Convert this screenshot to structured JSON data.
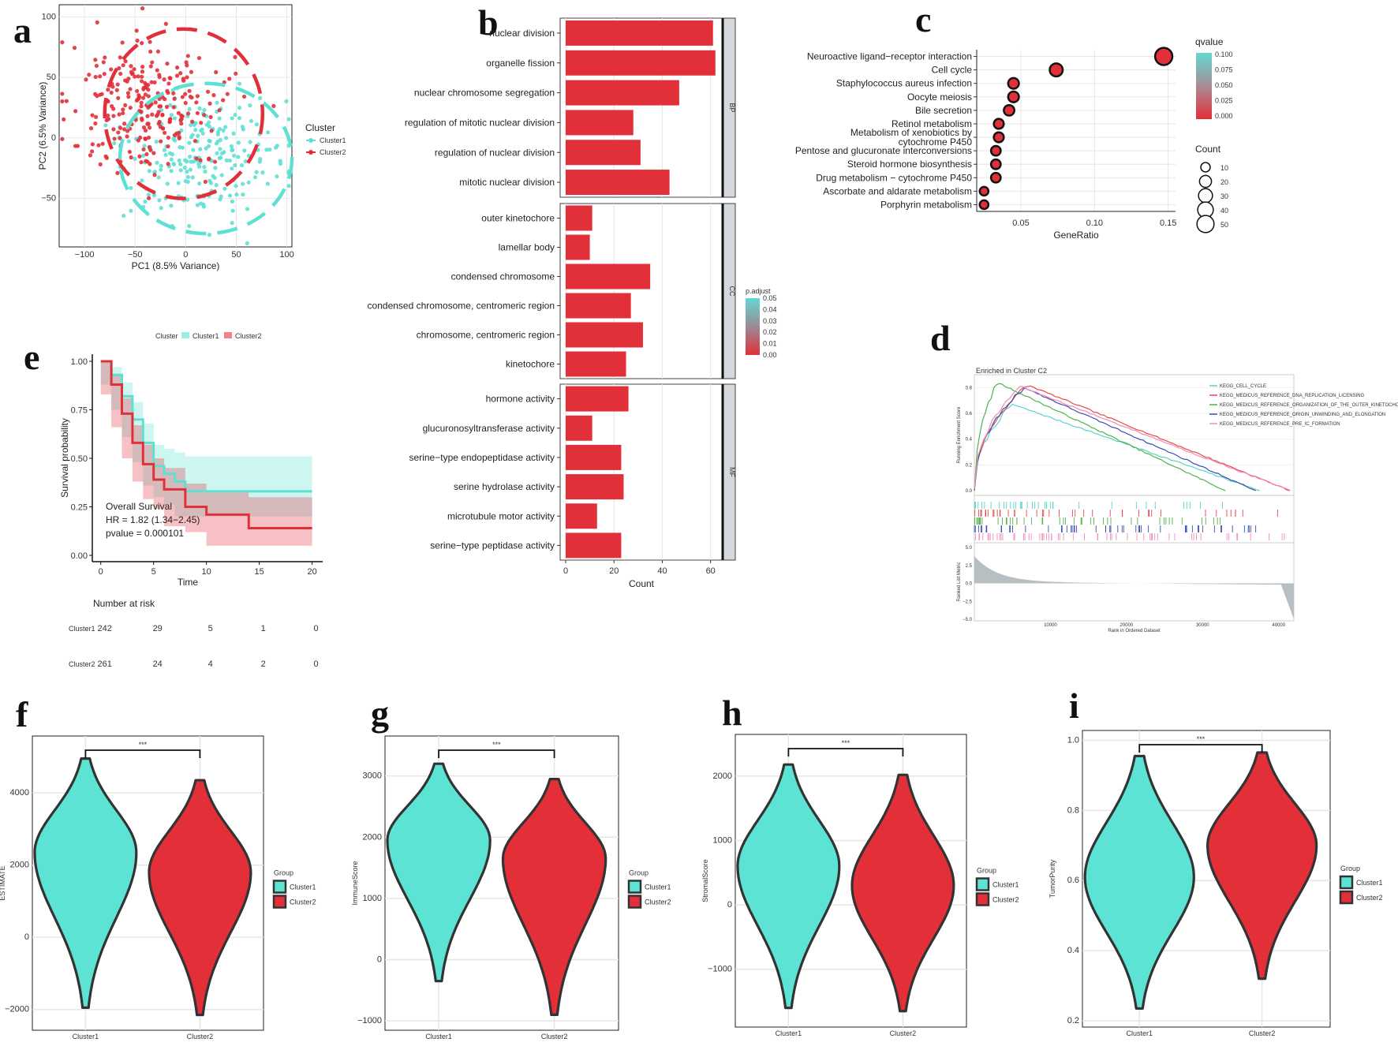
{
  "panels": {
    "a": "a",
    "b": "b",
    "c": "c",
    "d": "d",
    "e": "e",
    "f": "f",
    "g": "g",
    "h": "h",
    "i": "i"
  },
  "colors": {
    "cluster1": "#5ee0d2",
    "cluster2": "#e2303a",
    "grid": "#e6e6e6",
    "strip": "#d5d8dc",
    "violin_c1": "#5de3d3",
    "violin_c2": "#e32f37",
    "outline": "#333333"
  },
  "chart_data": [
    {
      "id": "a",
      "type": "scatter",
      "xlabel": "PC1 (8.5% Variance)",
      "ylabel": "PC2 (6.5% Variance)",
      "xlim": [
        -125,
        105
      ],
      "ylim": [
        -90,
        110
      ],
      "xticks": [
        -100,
        -50,
        0,
        50,
        100
      ],
      "yticks": [
        -50,
        0,
        50,
        100
      ],
      "xtick_labels": [
        "−100",
        "−50",
        "0",
        "50",
        "100"
      ],
      "ytick_labels": [
        "−50",
        "0",
        "50",
        "100"
      ],
      "legend": {
        "title": "Cluster",
        "entries": [
          "Cluster1",
          "Cluster2"
        ],
        "placement": "right"
      },
      "ellipses": [
        {
          "series": "Cluster2",
          "center": [
            -2,
            20
          ],
          "rx": 78,
          "ry": 70
        },
        {
          "series": "Cluster1",
          "center": [
            20,
            -17
          ],
          "rx": 85,
          "ry": 62
        }
      ],
      "series": [
        {
          "name": "Cluster1",
          "n_points": 242,
          "center": [
            15,
            -15
          ],
          "spread": [
            40,
            28
          ]
        },
        {
          "name": "Cluster2",
          "n_points": 261,
          "center": [
            -35,
            25
          ],
          "spread": [
            40,
            30
          ]
        }
      ]
    },
    {
      "id": "b",
      "type": "bar",
      "orientation": "horizontal",
      "xlabel": "Count",
      "xlim": [
        0,
        65
      ],
      "xticks": [
        0,
        20,
        40,
        60
      ],
      "facets": [
        {
          "strip": "BP",
          "categories": [
            "nuclear division",
            "organelle fission",
            "nuclear chromosome segregation",
            "regulation of mitotic nuclear division",
            "regulation of nuclear division",
            "mitotic nuclear division"
          ],
          "values": [
            61,
            62,
            47,
            28,
            31,
            43
          ]
        },
        {
          "strip": "CC",
          "categories": [
            "outer kinetochore",
            "lamellar body",
            "condensed chromosome",
            "condensed chromosome, centromeric region",
            "chromosome, centromeric region",
            "kinetochore"
          ],
          "values": [
            11,
            10,
            35,
            27,
            32,
            25
          ]
        },
        {
          "strip": "MF",
          "categories": [
            "hormone activity",
            "glucuronosyltransferase activity",
            "serine−type endopeptidase activity",
            "serine hydrolase activity",
            "microtubule motor activity",
            "serine−type peptidase activity"
          ],
          "values": [
            26,
            11,
            23,
            24,
            13,
            23
          ]
        }
      ],
      "colorbar": {
        "title": "p.adjust",
        "ticks": [
          "0.05",
          "0.04",
          "0.03",
          "0.02",
          "0.01",
          "0.00"
        ]
      }
    },
    {
      "id": "c",
      "type": "scatter",
      "subtype": "dot",
      "xlabel": "GeneRatio",
      "xlim": [
        0.02,
        0.155
      ],
      "xticks": [
        0.05,
        0.1,
        0.15
      ],
      "xtick_labels": [
        "0.05",
        "0.10",
        "0.15"
      ],
      "categories": [
        "Neuroactive ligand−receptor interaction",
        "Cell cycle",
        "Staphylococcus aureus infection",
        "Oocyte meiosis",
        "Bile secretion",
        "Retinol metabolism",
        "Metabolism of xenobiotics by|cytochrome P450",
        "Pentose and glucuronate interconversions",
        "Steroid hormone biosynthesis",
        "Drug metabolism − cytochrome P450",
        "Ascorbate and aldarate metabolism",
        "Porphyrin metabolism"
      ],
      "x": [
        0.147,
        0.074,
        0.045,
        0.045,
        0.042,
        0.035,
        0.035,
        0.033,
        0.033,
        0.033,
        0.025,
        0.025
      ],
      "count": [
        51,
        25,
        15,
        15,
        14,
        12,
        12,
        11,
        11,
        11,
        8,
        8
      ],
      "colorbar": {
        "title": "qvalue",
        "ticks": [
          "0.100",
          "0.075",
          "0.050",
          "0.025",
          "0.000"
        ]
      },
      "size_legend": {
        "title": "Count",
        "entries": [
          "10",
          "20",
          "30",
          "40",
          "50"
        ]
      }
    },
    {
      "id": "d",
      "type": "line",
      "subtype": "gsea",
      "title": "Enriched in Cluster C2",
      "ylabel_top": "Running Enrichment Score",
      "ylabel_bottom": "Ranked List Metric",
      "xlabel": "Rank in Ordered Dataset",
      "xlim": [
        0,
        42000
      ],
      "xticks": [
        10000,
        20000,
        30000,
        40000
      ],
      "xtick_labels": [
        "10000",
        "20000",
        "30000",
        "40000"
      ],
      "yticks_top": [
        0.0,
        0.2,
        0.4,
        0.6,
        0.8
      ],
      "yticks_bottom": [
        "5.0",
        "2.5",
        "0.0",
        "−2.5",
        "−5.0"
      ],
      "series": [
        {
          "name": "KEGG_CELL_CYCLE",
          "color": "#5ad3c8",
          "peak_rank": 5000,
          "peak": 0.67,
          "end_rank": 37500
        },
        {
          "name": "KEGG_MEDICUS_REFERENCE_DNA_REPLICATION_LICENSING",
          "color": "#e8484c",
          "peak_rank": 7000,
          "peak": 0.82,
          "end_rank": 41500
        },
        {
          "name": "KEGG_MEDICUS_REFERENCE_ORGANIZATION_OF_THE_OUTER_KINETOCHO",
          "color": "#4db34a",
          "peak_rank": 3000,
          "peak": 0.84,
          "end_rank": 33000
        },
        {
          "name": "KEGG_MEDICUS_REFERENCE_ORIGIN_UNWINDING_AND_ELONGATION",
          "color": "#3a4fb5",
          "peak_rank": 6500,
          "peak": 0.8,
          "end_rank": 37000
        },
        {
          "name": "KEGG_MEDICUS_REFERENCE_PRE_IC_FORMATION",
          "color": "#f28cb8",
          "peak_rank": 6000,
          "peak": 0.81,
          "end_rank": 41500
        }
      ]
    },
    {
      "id": "e",
      "type": "line",
      "subtype": "kaplan-meier",
      "xlabel": "Time",
      "ylabel": "Survival probability",
      "xlim": [
        0,
        20
      ],
      "ylim": [
        0,
        1
      ],
      "xticks": [
        0,
        5,
        10,
        15,
        20
      ],
      "yticks": [
        "0.00",
        "0.25",
        "0.50",
        "0.75",
        "1.00"
      ],
      "legend": {
        "title": "Cluster",
        "entries": [
          "Cluster1",
          "Cluster2"
        ],
        "placement": "top"
      },
      "annotation": [
        "Overall Survival",
        "HR = 1.82 (1.34−2.45)",
        "pvalue = 0.000101"
      ],
      "series": [
        {
          "name": "Cluster1",
          "t": [
            0,
            1,
            2,
            3,
            4,
            5,
            6,
            7,
            8,
            10,
            20
          ],
          "s": [
            1.0,
            0.93,
            0.82,
            0.7,
            0.58,
            0.46,
            0.42,
            0.38,
            0.33,
            0.33,
            0.33
          ],
          "upper": [
            1.0,
            0.97,
            0.89,
            0.79,
            0.68,
            0.57,
            0.55,
            0.53,
            0.51,
            0.51,
            0.51
          ],
          "lower": [
            1.0,
            0.88,
            0.75,
            0.61,
            0.48,
            0.36,
            0.3,
            0.26,
            0.2,
            0.2,
            0.2
          ]
        },
        {
          "name": "Cluster2",
          "t": [
            0,
            1,
            2,
            3,
            4,
            5,
            6,
            8,
            10,
            14,
            20
          ],
          "s": [
            1.0,
            0.88,
            0.73,
            0.58,
            0.47,
            0.39,
            0.34,
            0.25,
            0.21,
            0.14,
            0.14
          ],
          "upper": [
            1.0,
            0.93,
            0.81,
            0.67,
            0.57,
            0.5,
            0.45,
            0.37,
            0.33,
            0.3,
            0.3
          ],
          "lower": [
            1.0,
            0.83,
            0.66,
            0.5,
            0.38,
            0.29,
            0.24,
            0.15,
            0.12,
            0.05,
            0.05
          ]
        }
      ],
      "risk_table": {
        "title": "Number at risk",
        "rows": [
          {
            "name": "Cluster1",
            "values": [
              "242",
              "29",
              "5",
              "1",
              "0"
            ]
          },
          {
            "name": "Cluster2",
            "values": [
              "261",
              "24",
              "4",
              "2",
              "0"
            ]
          }
        ]
      }
    },
    {
      "id": "f",
      "type": "violin",
      "ylabel": "ESTIMATE",
      "categories": [
        "Cluster1",
        "Cluster2"
      ],
      "ylim": [
        -2400,
        5400
      ],
      "yticks": [
        -2000,
        0,
        2000,
        4000
      ],
      "ytick_labels": [
        "−2000",
        "0",
        "2000",
        "4000"
      ],
      "ranges": [
        [
          -1950,
          4950
        ],
        [
          -2150,
          4350
        ]
      ],
      "modes": [
        2350,
        1800
      ],
      "significance": "***",
      "legend": {
        "title": "Group",
        "entries": [
          "Cluster1",
          "Cluster2"
        ]
      }
    },
    {
      "id": "g",
      "type": "violin",
      "ylabel": "ImmuneScore",
      "categories": [
        "Cluster1",
        "Cluster2"
      ],
      "ylim": [
        -1050,
        3550
      ],
      "yticks": [
        -1000,
        0,
        1000,
        2000,
        3000
      ],
      "ytick_labels": [
        "−1000",
        "0",
        "1000",
        "2000",
        "3000"
      ],
      "ranges": [
        [
          -350,
          3200
        ],
        [
          -900,
          2950
        ]
      ],
      "modes": [
        1950,
        1650
      ],
      "significance": "***",
      "legend": {
        "title": "Group",
        "entries": [
          "Cluster1",
          "Cluster2"
        ]
      }
    },
    {
      "id": "h",
      "type": "violin",
      "ylabel": "StromalScore",
      "categories": [
        "Cluster1",
        "Cluster2"
      ],
      "ylim": [
        -1800,
        2550
      ],
      "yticks": [
        -1000,
        0,
        1000,
        2000
      ],
      "ytick_labels": [
        "−1000",
        "0",
        "1000",
        "2000"
      ],
      "ranges": [
        [
          -1600,
          2180
        ],
        [
          -1650,
          2020
        ]
      ],
      "modes": [
        600,
        300
      ],
      "significance": "***",
      "legend": {
        "title": "Group",
        "entries": [
          "Cluster1",
          "Cluster2"
        ]
      }
    },
    {
      "id": "i",
      "type": "violin",
      "ylabel": "TumorPurity",
      "categories": [
        "Cluster1",
        "Cluster2"
      ],
      "ylim": [
        0.2,
        1.01
      ],
      "yticks": [
        0.2,
        0.4,
        0.6,
        0.8,
        1.0
      ],
      "ytick_labels": [
        "0.2",
        "0.4",
        "0.6",
        "0.8",
        "1.0"
      ],
      "ranges": [
        [
          0.235,
          0.955
        ],
        [
          0.32,
          0.965
        ]
      ],
      "modes": [
        0.61,
        0.7
      ],
      "significance": "***",
      "legend": {
        "title": "Group",
        "entries": [
          "Cluster1",
          "Cluster2"
        ]
      }
    }
  ]
}
